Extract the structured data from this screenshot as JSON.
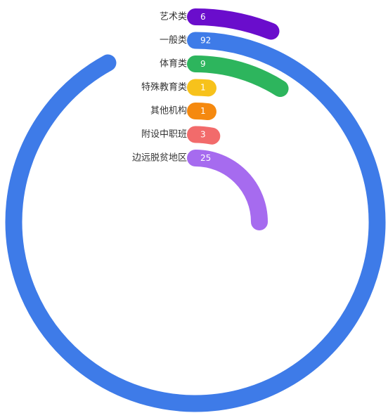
{
  "chart_data": {
    "type": "radial-bar",
    "title": "",
    "max": 100,
    "direction": "clockwise-from-top",
    "colors": {
      "艺术类": "#6a0dcc",
      "一般类": "#3e7be8",
      "体育类": "#2db55d",
      "特殊教育类": "#f7c21b",
      "其他机构": "#f5890f",
      "附设中职班": "#f26b6b",
      "边远脱贫地区": "#a66bef"
    },
    "categories": [
      "艺术类",
      "一般类",
      "体育类",
      "特殊教育类",
      "其他机构",
      "附设中职班",
      "边远脱贫地区"
    ],
    "values": [
      6,
      92,
      9,
      1,
      1,
      3,
      25
    ],
    "value_labels": [
      "6",
      "92",
      "9",
      "1",
      "1",
      "3",
      "25"
    ]
  }
}
